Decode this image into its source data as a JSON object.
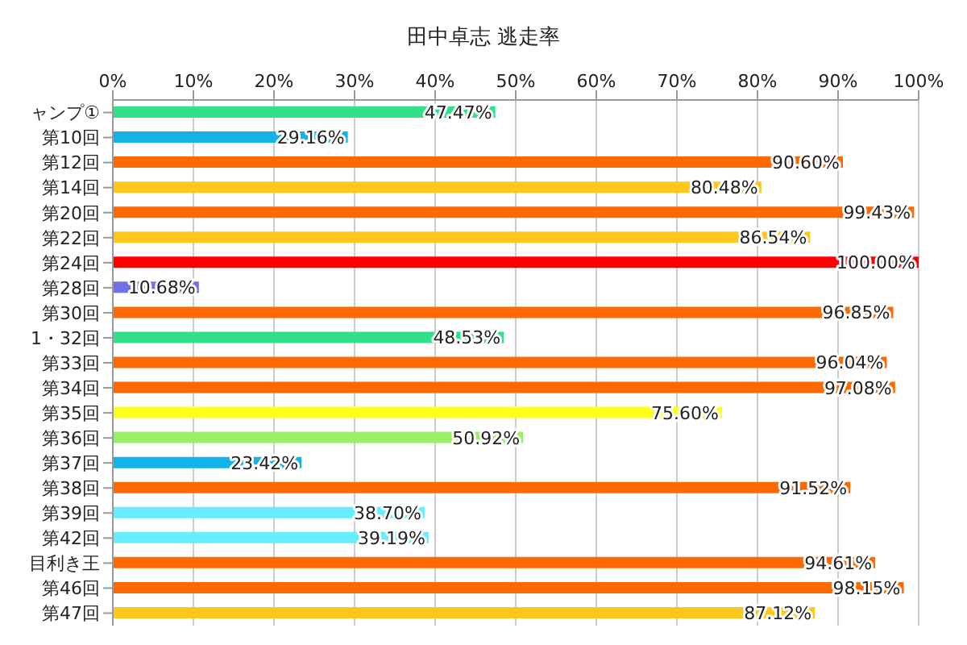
{
  "chart_data": {
    "type": "bar",
    "orientation": "horizontal",
    "title": "田中卓志 逃走率",
    "categories": [
      "ャンプ①",
      "第10回",
      "第12回",
      "第14回",
      "第20回",
      "第22回",
      "第24回",
      "第28回",
      "第30回",
      "1・32回",
      "第33回",
      "第34回",
      "第35回",
      "第36回",
      "第37回",
      "第38回",
      "第39回",
      "第42回",
      "目利き王",
      "第46回",
      "第47回"
    ],
    "values": [
      47.47,
      29.16,
      90.6,
      80.48,
      99.43,
      86.54,
      100.0,
      10.68,
      96.85,
      48.53,
      96.04,
      97.08,
      75.6,
      50.92,
      23.42,
      91.52,
      38.7,
      39.19,
      94.61,
      98.15,
      87.12
    ],
    "value_labels": [
      "47.47%",
      "29.16%",
      "90.60%",
      "80.48%",
      "99.43%",
      "86.54%",
      "100.00%",
      "10.68%",
      "96.85%",
      "48.53%",
      "96.04%",
      "97.08%",
      "75.60%",
      "50.92%",
      "23.42%",
      "91.52%",
      "38.70%",
      "39.19%",
      "94.61%",
      "98.15%",
      "87.12%"
    ],
    "colors": [
      "#33e08a",
      "#12b4e8",
      "#ff6a00",
      "#ffc71a",
      "#ff6a00",
      "#ffc71a",
      "#ff0000",
      "#7070e8",
      "#ff6a00",
      "#33e08a",
      "#ff6a00",
      "#ff6a00",
      "#ffff1a",
      "#99f066",
      "#12b4e8",
      "#ff6a00",
      "#66eeff",
      "#66eeff",
      "#ff6a00",
      "#ff6a00",
      "#ffc71a"
    ],
    "xlim": [
      0,
      100
    ],
    "xticks": [
      {
        "value": 0,
        "label": "0%"
      },
      {
        "value": 10,
        "label": "10%"
      },
      {
        "value": 20,
        "label": "20%"
      },
      {
        "value": 30,
        "label": "30%"
      },
      {
        "value": 40,
        "label": "40%"
      },
      {
        "value": 50,
        "label": "50%"
      },
      {
        "value": 60,
        "label": "60%"
      },
      {
        "value": 70,
        "label": "70%"
      },
      {
        "value": 80,
        "label": "80%"
      },
      {
        "value": 90,
        "label": "90%"
      },
      {
        "value": 100,
        "label": "100%"
      }
    ],
    "grid": "x"
  }
}
